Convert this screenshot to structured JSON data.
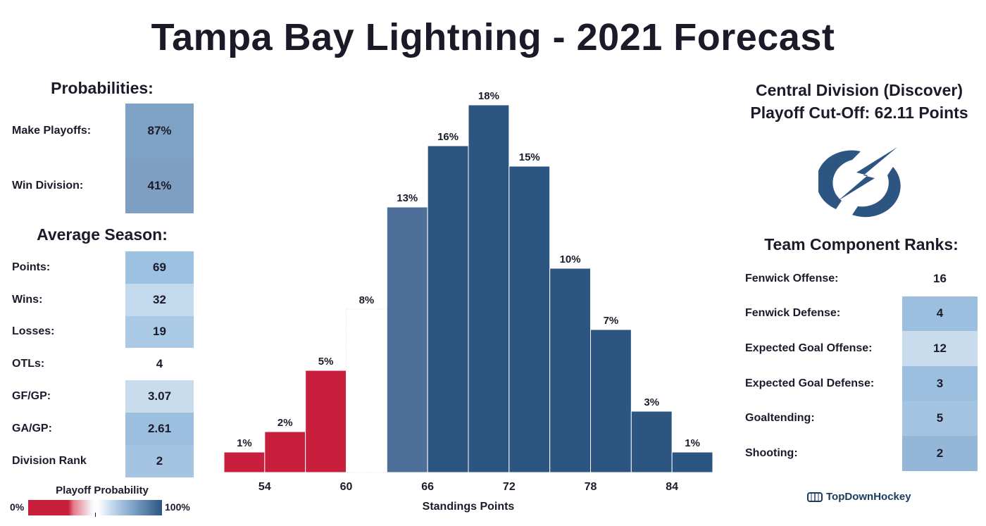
{
  "title": "Tampa Bay Lightning - 2021 Forecast",
  "colors": {
    "red": "#c8203c",
    "white": "#ffffff",
    "light_blue": "#c8dcee",
    "mid_blue": "#9dbfdf",
    "blue": "#7fa4c8",
    "dark_blue": "#4d6f99",
    "navy": "#2d5582"
  },
  "probabilities": {
    "heading": "Probabilities:",
    "rows": [
      {
        "label": "Make Playoffs:",
        "value": "87%",
        "color": "#7fa3c6"
      },
      {
        "label": "Win Division:",
        "value": "41%",
        "color": "#7e9fc2"
      }
    ]
  },
  "average_season": {
    "heading": "Average Season:",
    "rows": [
      {
        "label": "Points:",
        "value": "69",
        "color": "#9dc1e0"
      },
      {
        "label": "Wins:",
        "value": "32",
        "color": "#c3d9ed"
      },
      {
        "label": "Losses:",
        "value": "19",
        "color": "#a9c9e5"
      },
      {
        "label": "OTLs:",
        "value": "4",
        "color": "#ffffff"
      },
      {
        "label": "GF/GP:",
        "value": "3.07",
        "color": "#c8dcee"
      },
      {
        "label": "GA/GP:",
        "value": "2.61",
        "color": "#9dbfdf"
      },
      {
        "label": "Division Rank",
        "value": "2",
        "color": "#a4c4e2"
      }
    ]
  },
  "legend": {
    "title": "Playoff Probability",
    "min_label": "0%",
    "max_label": "100%"
  },
  "division": {
    "name": "Central Division (Discover)",
    "cutoff": "Playoff Cut-Off: 62.11 Points"
  },
  "logo": {
    "icon": "lightning-bolt-logo-icon",
    "color": "#2d5582"
  },
  "team_ranks": {
    "heading": "Team Component Ranks:",
    "rows": [
      {
        "label": "Fenwick Offense:",
        "value": "16",
        "color": "#ffffff"
      },
      {
        "label": "Fenwick Defense:",
        "value": "4",
        "color": "#9dbfdf"
      },
      {
        "label": "Expected Goal Offense:",
        "value": "12",
        "color": "#c8dcee"
      },
      {
        "label": "Expected Goal Defense:",
        "value": "3",
        "color": "#9dbfdf"
      },
      {
        "label": "Goaltending:",
        "value": "5",
        "color": "#a4c4e2"
      },
      {
        "label": "Shooting:",
        "value": "2",
        "color": "#94b7d8"
      }
    ]
  },
  "brand": {
    "name": "TopDownHockey",
    "icon": "hockey-rink-icon"
  },
  "chart_data": {
    "type": "bar",
    "title": "",
    "xlabel": "Standings Points",
    "ylabel": "",
    "x_bin_width": 3,
    "x_ticks": [
      54,
      60,
      66,
      72,
      78,
      84
    ],
    "xlim": [
      49.5,
      88.5
    ],
    "ylim": [
      0,
      20
    ],
    "bins": [
      {
        "x": 52.5,
        "value": 1,
        "label": "1%",
        "color": "#c8203c"
      },
      {
        "x": 55.5,
        "value": 2,
        "label": "2%",
        "color": "#c8203c"
      },
      {
        "x": 58.5,
        "value": 5,
        "label": "5%",
        "color": "#c8203c"
      },
      {
        "x": 61.5,
        "value": 8,
        "label": "8%",
        "color": "#ffffff"
      },
      {
        "x": 64.5,
        "value": 13,
        "label": "13%",
        "color": "#4d6f99"
      },
      {
        "x": 67.5,
        "value": 16,
        "label": "16%",
        "color": "#2d5582"
      },
      {
        "x": 70.5,
        "value": 18,
        "label": "18%",
        "color": "#2d5582"
      },
      {
        "x": 73.5,
        "value": 15,
        "label": "15%",
        "color": "#2d5582"
      },
      {
        "x": 76.5,
        "value": 10,
        "label": "10%",
        "color": "#2d5582"
      },
      {
        "x": 79.5,
        "value": 7,
        "label": "7%",
        "color": "#2d5582"
      },
      {
        "x": 82.5,
        "value": 3,
        "label": "3%",
        "color": "#2d5582"
      },
      {
        "x": 85.5,
        "value": 1,
        "label": "1%",
        "color": "#2d5582"
      }
    ]
  }
}
